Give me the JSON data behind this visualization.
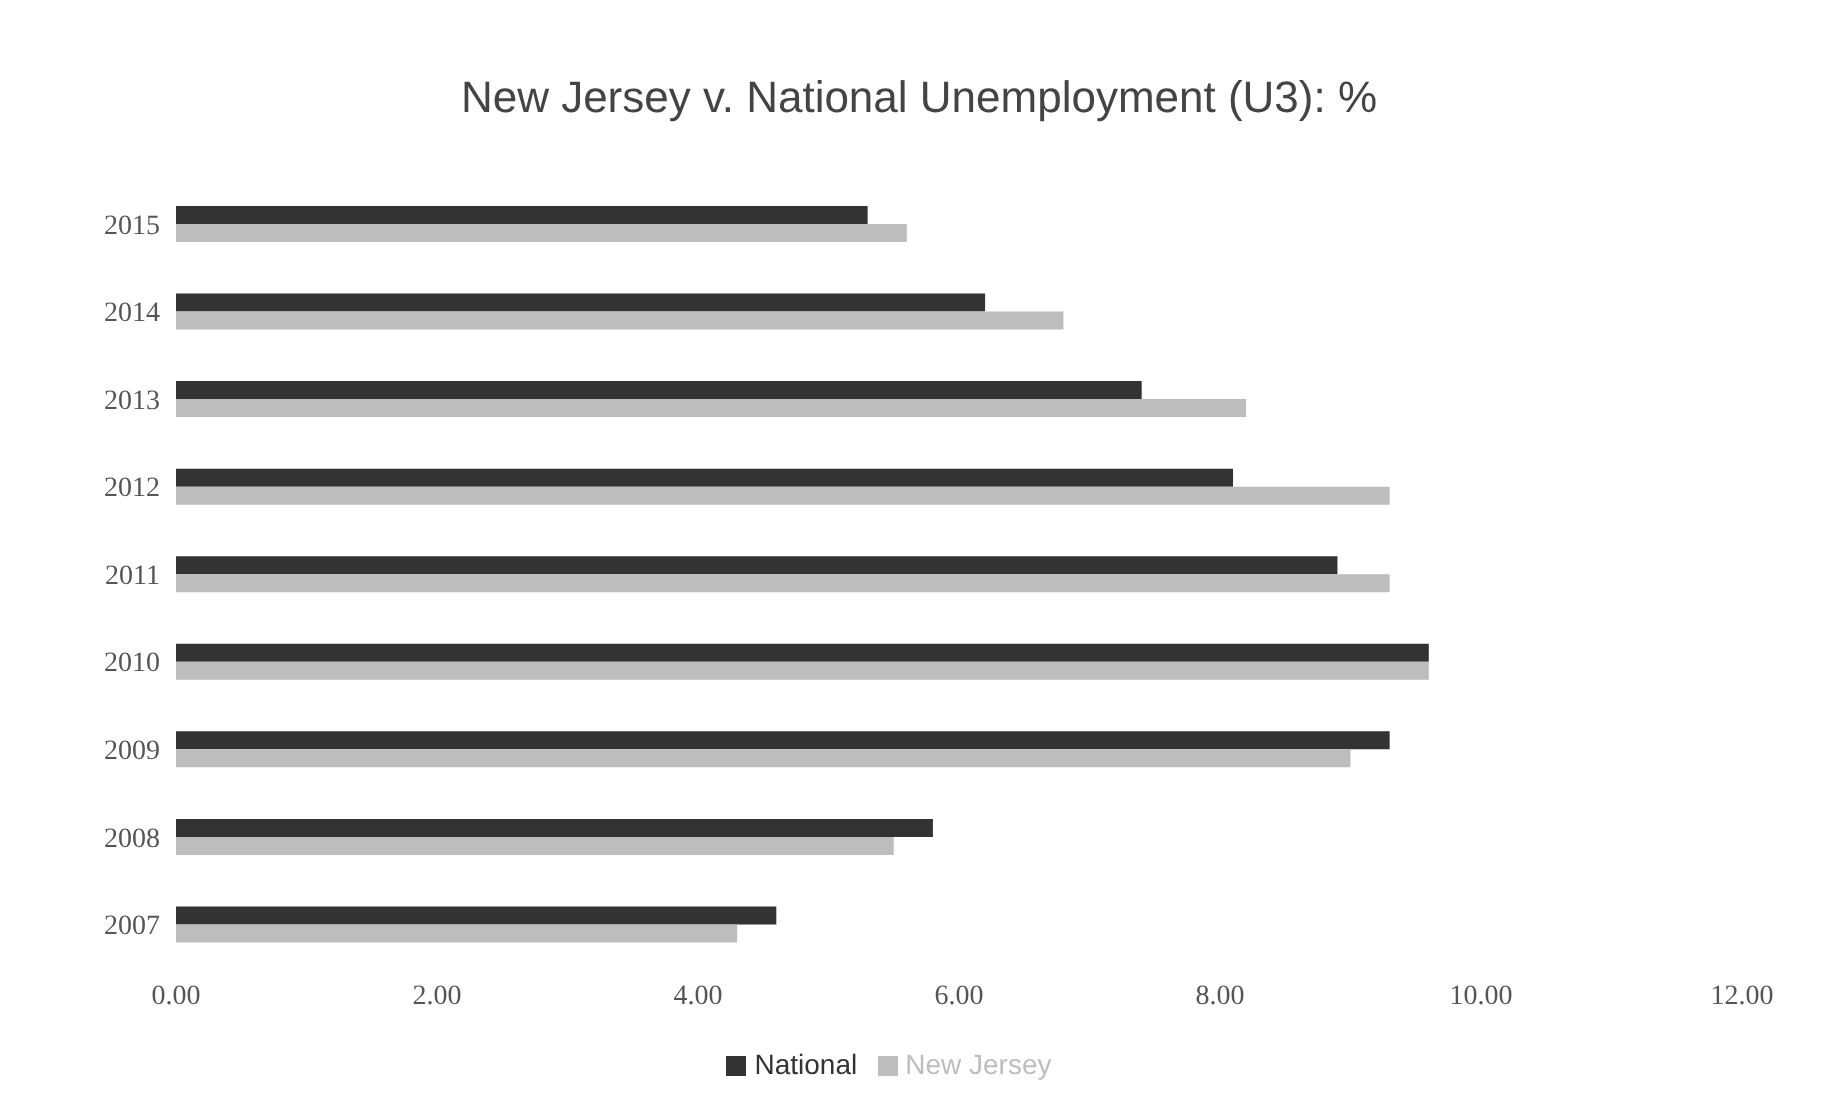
{
  "chart_data": {
    "type": "bar",
    "orientation": "horizontal",
    "title": "New Jersey v. National Unemployment (U3): %",
    "categories": [
      "2015",
      "2014",
      "2013",
      "2012",
      "2011",
      "2010",
      "2009",
      "2008",
      "2007"
    ],
    "series": [
      {
        "name": "National",
        "color": "#333333",
        "values": [
          5.3,
          6.2,
          7.4,
          8.1,
          8.9,
          9.6,
          9.3,
          5.8,
          4.6
        ]
      },
      {
        "name": "New Jersey",
        "color": "#bdbdbd",
        "values": [
          5.6,
          6.8,
          8.2,
          9.3,
          9.3,
          9.6,
          9.0,
          5.5,
          4.3
        ]
      }
    ],
    "xlim": [
      0,
      12
    ],
    "xticks": [
      {
        "value": 0,
        "label": "0.00"
      },
      {
        "value": 2,
        "label": "2.00"
      },
      {
        "value": 4,
        "label": "4.00"
      },
      {
        "value": 6,
        "label": "6.00"
      },
      {
        "value": 8,
        "label": "8.00"
      },
      {
        "value": 10,
        "label": "10.00"
      },
      {
        "value": 12,
        "label": "12.00"
      }
    ],
    "grid": false,
    "legend": "bottom"
  }
}
